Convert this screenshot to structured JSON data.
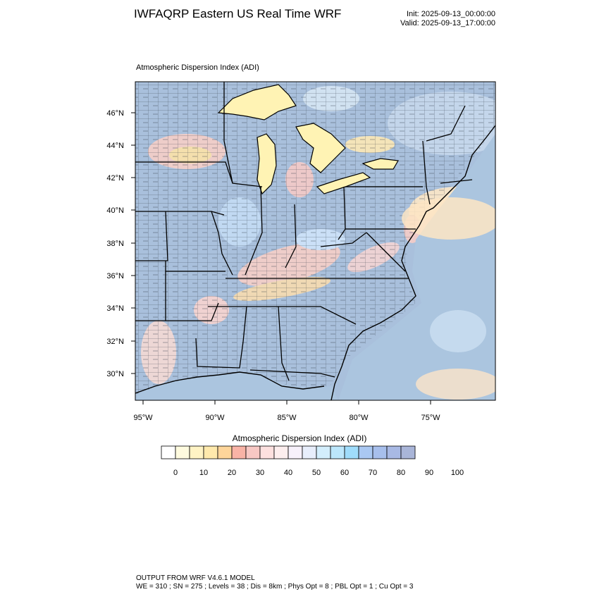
{
  "header": {
    "title": "IWFAQRP Eastern US Real Time WRF",
    "init": "Init: 2025-09-13_00:00:00",
    "valid": "Valid: 2025-09-13_17:00:00"
  },
  "map": {
    "subtitle": "Atmospheric Dispersion Index   (ADI)",
    "lat_labels": [
      "46°N",
      "44°N",
      "42°N",
      "40°N",
      "38°N",
      "36°N",
      "34°N",
      "32°N",
      "30°N"
    ],
    "lon_labels": [
      "95°W",
      "90°W",
      "85°W",
      "80°W",
      "75°W"
    ]
  },
  "colorbar": {
    "title": "Atmospheric Dispersion Index  (ADI)",
    "tick_labels": [
      "0",
      "10",
      "20",
      "30",
      "40",
      "50",
      "60",
      "70",
      "80",
      "90",
      "100"
    ],
    "colors": [
      "#ffffff",
      "#fffbdf",
      "#fff3c4",
      "#ffe9ac",
      "#fed59a",
      "#f9b3a6",
      "#f8c8c4",
      "#fde0df",
      "#fdeeee",
      "#f7f1fb",
      "#e8eefb",
      "#d3eefc",
      "#bce7fc",
      "#9fdcfb",
      "#aac8f2",
      "#a7bfec",
      "#a8b9e4",
      "#a9b5d8"
    ]
  },
  "footer": {
    "line1": "OUTPUT FROM WRF V4.6.1 MODEL",
    "line2": "WE = 310 ; SN = 275 ; Levels = 38 ; Dis = 8km ; Phys Opt = 8 ; PBL Opt = 1 ; Cu Opt = 3"
  }
}
